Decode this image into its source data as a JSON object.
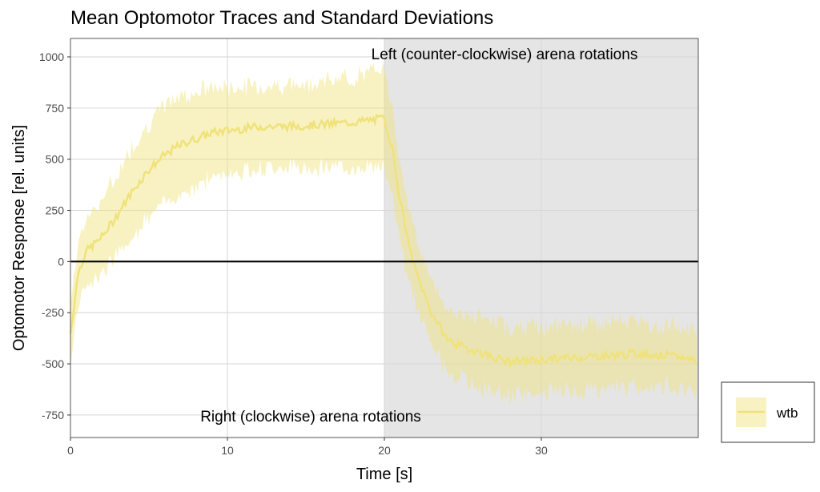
{
  "chart_data": {
    "type": "line",
    "title": "Mean Optomotor Traces and Standard Deviations",
    "xlabel": "Time [s]",
    "ylabel": "Optomotor Response [rel. units]",
    "xlim": [
      0,
      40
    ],
    "ylim": [
      -860,
      1090
    ],
    "x_ticks": [
      0,
      10,
      20,
      30
    ],
    "y_ticks": [
      1000,
      750,
      500,
      250,
      0,
      -250,
      -500,
      -750
    ],
    "grid": true,
    "shaded_region": {
      "from": 20,
      "to": 40,
      "color": "#e5e5e5"
    },
    "annotations": [
      "Left (counter-clockwise) arena rotations",
      "Right (clockwise) arena rotations"
    ],
    "legend": {
      "position": "bottom-right",
      "entries": [
        "wtb"
      ]
    },
    "series": [
      {
        "name": "wtb",
        "color": "#f0e27a",
        "x": [
          0,
          0.5,
          1,
          2,
          3,
          4,
          5,
          6,
          7,
          8,
          9,
          10,
          12,
          14,
          16,
          18,
          19,
          20,
          20.5,
          21,
          21.5,
          22,
          23,
          24,
          25,
          26,
          27,
          28,
          30,
          32,
          34,
          36,
          38,
          40
        ],
        "mean": [
          -350,
          -50,
          50,
          120,
          230,
          350,
          450,
          520,
          570,
          600,
          630,
          640,
          660,
          660,
          670,
          680,
          690,
          700,
          550,
          300,
          100,
          -50,
          -250,
          -380,
          -420,
          -440,
          -470,
          -490,
          -480,
          -470,
          -460,
          -450,
          -460,
          -480
        ],
        "sd": [
          150,
          150,
          160,
          180,
          200,
          220,
          230,
          240,
          240,
          230,
          220,
          210,
          200,
          200,
          210,
          220,
          230,
          240,
          220,
          200,
          180,
          170,
          160,
          150,
          160,
          170,
          170,
          170,
          160,
          160,
          160,
          160,
          150,
          150
        ]
      }
    ]
  }
}
